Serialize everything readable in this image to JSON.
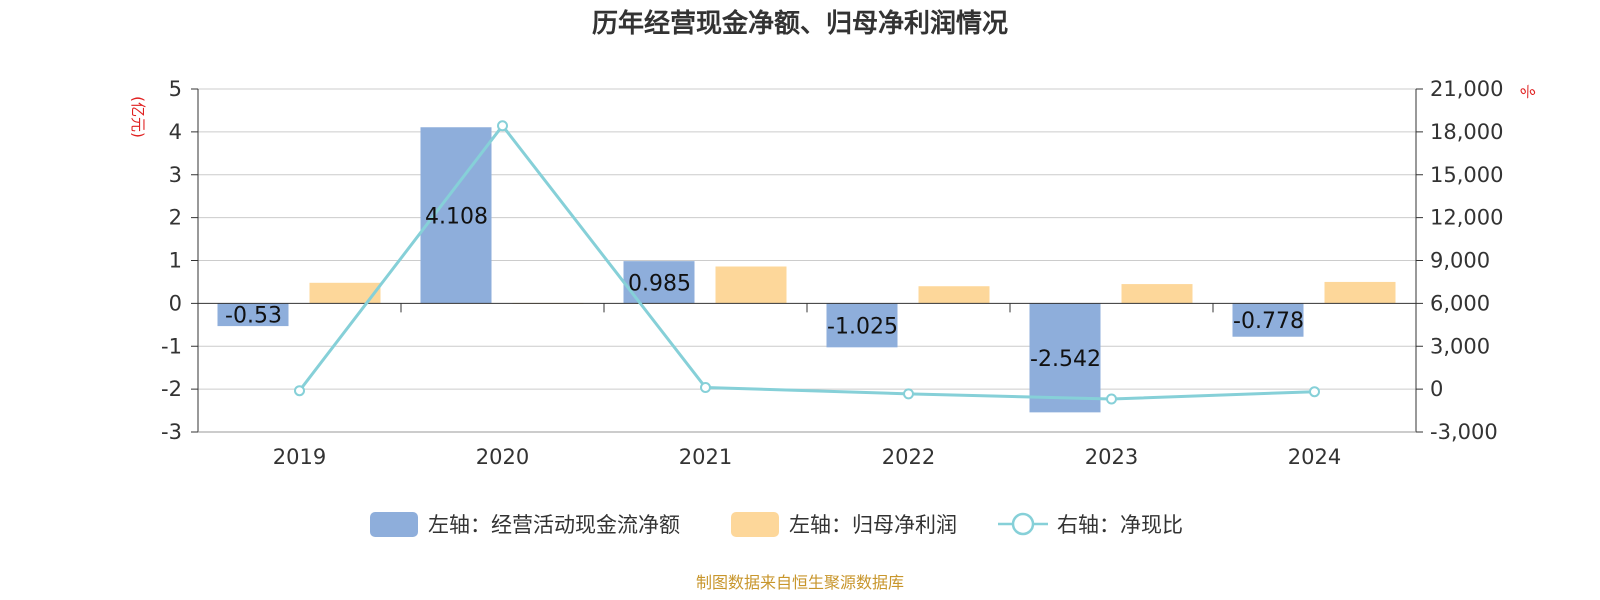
{
  "title": "历年经营现金净额、归母净利润情况",
  "left_unit": "(亿元)",
  "right_unit": "%",
  "source": "制图数据来自恒生聚源数据库",
  "colors": {
    "cash": "#8eaedb",
    "profit": "#fdd79a",
    "ratio": "#86d0d8",
    "unit": "#e02020",
    "source": "#c8962c"
  },
  "chart_data": {
    "type": "bar",
    "categories": [
      "2019",
      "2020",
      "2021",
      "2022",
      "2023",
      "2024"
    ],
    "series": [
      {
        "name": "左轴：经营活动现金流净额",
        "axis": "left",
        "type": "bar",
        "values": [
          -0.53,
          4.108,
          0.985,
          -1.025,
          -2.542,
          -0.778
        ],
        "labels": [
          "-0.53",
          "4.108",
          "0.985",
          "-1.025",
          "-2.542",
          "-0.778"
        ]
      },
      {
        "name": "左轴：归母净利润",
        "axis": "left",
        "type": "bar",
        "values": [
          0.48,
          0.01,
          0.86,
          0.4,
          0.45,
          0.5
        ]
      },
      {
        "name": "右轴：净现比",
        "axis": "right",
        "type": "line",
        "values": [
          -110,
          18430,
          115,
          -330,
          -690,
          -180
        ]
      }
    ],
    "y_left": {
      "lim": [
        -3,
        5
      ],
      "ticks": [
        -3,
        -2,
        -1,
        0,
        1,
        2,
        3,
        4,
        5
      ],
      "tick_labels": [
        "-3",
        "-2",
        "-1",
        "0",
        "1",
        "2",
        "3",
        "4",
        "5"
      ]
    },
    "y_right": {
      "lim": [
        -3000,
        21000
      ],
      "ticks": [
        -3000,
        0,
        3000,
        6000,
        9000,
        12000,
        15000,
        18000,
        21000
      ],
      "tick_labels": [
        "-3,000",
        "0",
        "3,000",
        "6,000",
        "9,000",
        "12,000",
        "15,000",
        "18,000",
        "21,000"
      ]
    },
    "grid": true,
    "legend_position": "bottom"
  }
}
